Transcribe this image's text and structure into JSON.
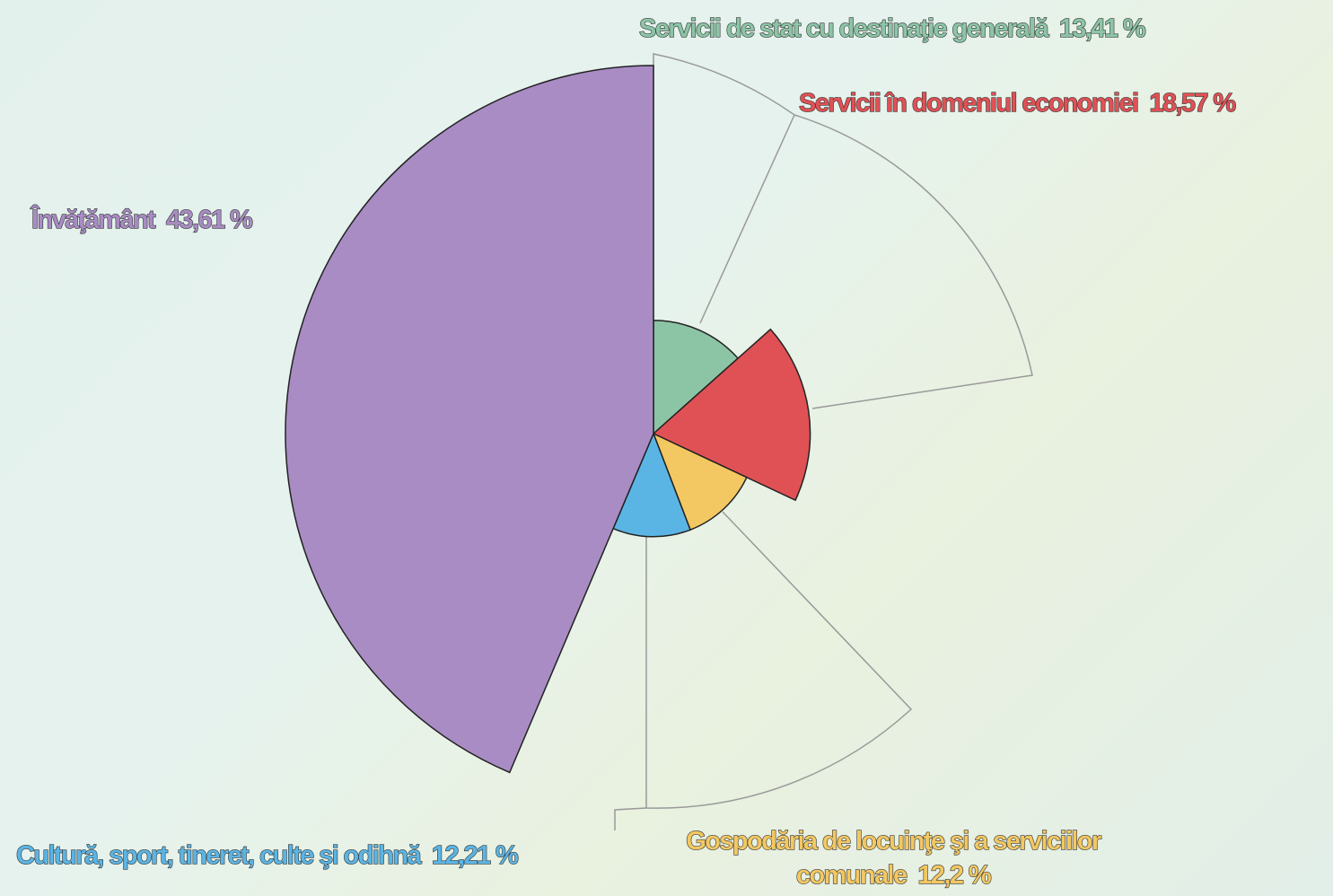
{
  "chart_data": {
    "type": "pie",
    "categories": [
      "Servicii de stat cu destinaţie generală",
      "Servicii în domeniul economiei",
      "Gospodăria de locuinţe şi a serviciilor comunale",
      "Cultură, sport, tineret, culte şi odihnă",
      "Învăţământ"
    ],
    "values": [
      13.41,
      18.57,
      12.2,
      12.21,
      43.61
    ],
    "value_labels": [
      "13,41 %",
      "18,57 %",
      "12,2 %",
      "12,21 %",
      "43,61 %"
    ],
    "colors": [
      "#8cc5a6",
      "#e05155",
      "#f3c862",
      "#5bb5e4",
      "#a98cc4"
    ]
  }
}
